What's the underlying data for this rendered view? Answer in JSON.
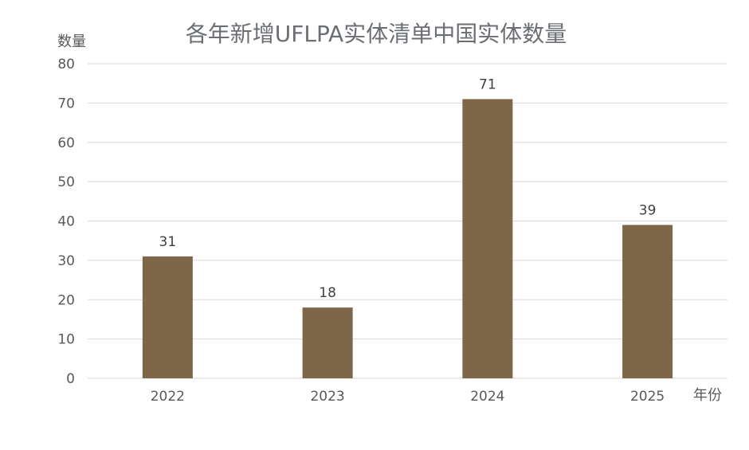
{
  "chart_data": {
    "type": "bar",
    "title": "各年新增UFLPA实体清单中国实体数量",
    "xlabel": "年份",
    "ylabel": "数量",
    "categories": [
      "2022",
      "2023",
      "2024",
      "2025"
    ],
    "values": [
      31,
      18,
      71,
      39
    ],
    "ylim": [
      0,
      80
    ],
    "yticks": [
      0,
      10,
      20,
      30,
      40,
      50,
      60,
      70,
      80
    ],
    "grid": true,
    "legend": "none",
    "bar_color": "#7e6649"
  }
}
